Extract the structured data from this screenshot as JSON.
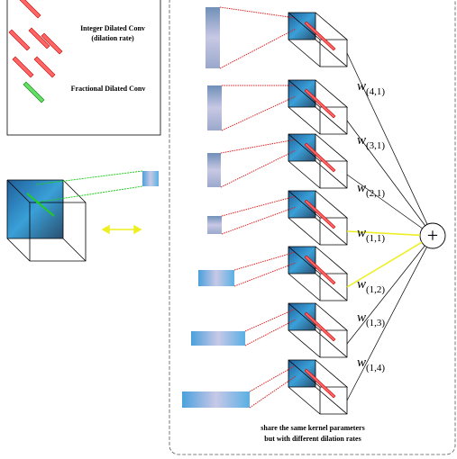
{
  "legend": {
    "integer_label": "Integer Dilated Conv",
    "integer_note": "(dilation rate)",
    "fractional_label": "Fractional Dilated Conv"
  },
  "weights": [
    {
      "symbol": "w",
      "subscript": "(4,1)"
    },
    {
      "symbol": "w",
      "subscript": "(3,1)"
    },
    {
      "symbol": "w",
      "subscript": "(2,1)"
    },
    {
      "symbol": "w",
      "subscript": "(1,1)"
    },
    {
      "symbol": "w",
      "subscript": "(1,2)"
    },
    {
      "symbol": "w",
      "subscript": "(1,3)"
    },
    {
      "symbol": "w",
      "subscript": "(1,4)"
    }
  ],
  "sum_symbol": "+",
  "caption": [
    "share the same kernel parameters",
    "but with different dilation rates"
  ]
}
